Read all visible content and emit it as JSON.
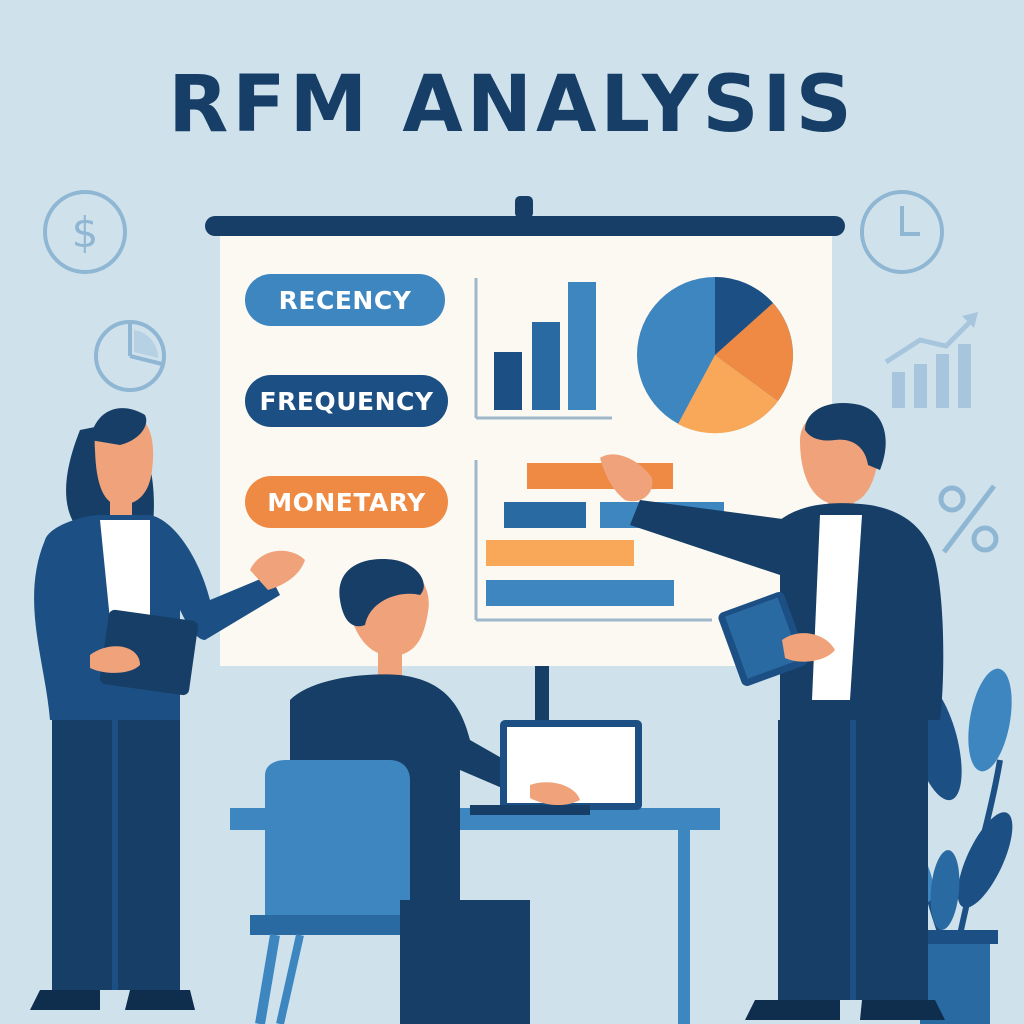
{
  "title": "RFM ANALYSIS",
  "labels": {
    "recency": "RECENCY",
    "frequency": "FREQUENCY",
    "monetary": "MONETARY"
  },
  "colors": {
    "background": "#cfe2ec",
    "navy": "#163e66",
    "blue": "#3d86c0",
    "dark_blue": "#1c4f83",
    "orange": "#ee8a44",
    "light_orange": "#f9a85a",
    "board": "#fbf9f2"
  },
  "decor_icons": [
    "dollar-icon",
    "clock-icon",
    "pie-chart-icon",
    "trend-up-icon",
    "percent-icon"
  ]
}
